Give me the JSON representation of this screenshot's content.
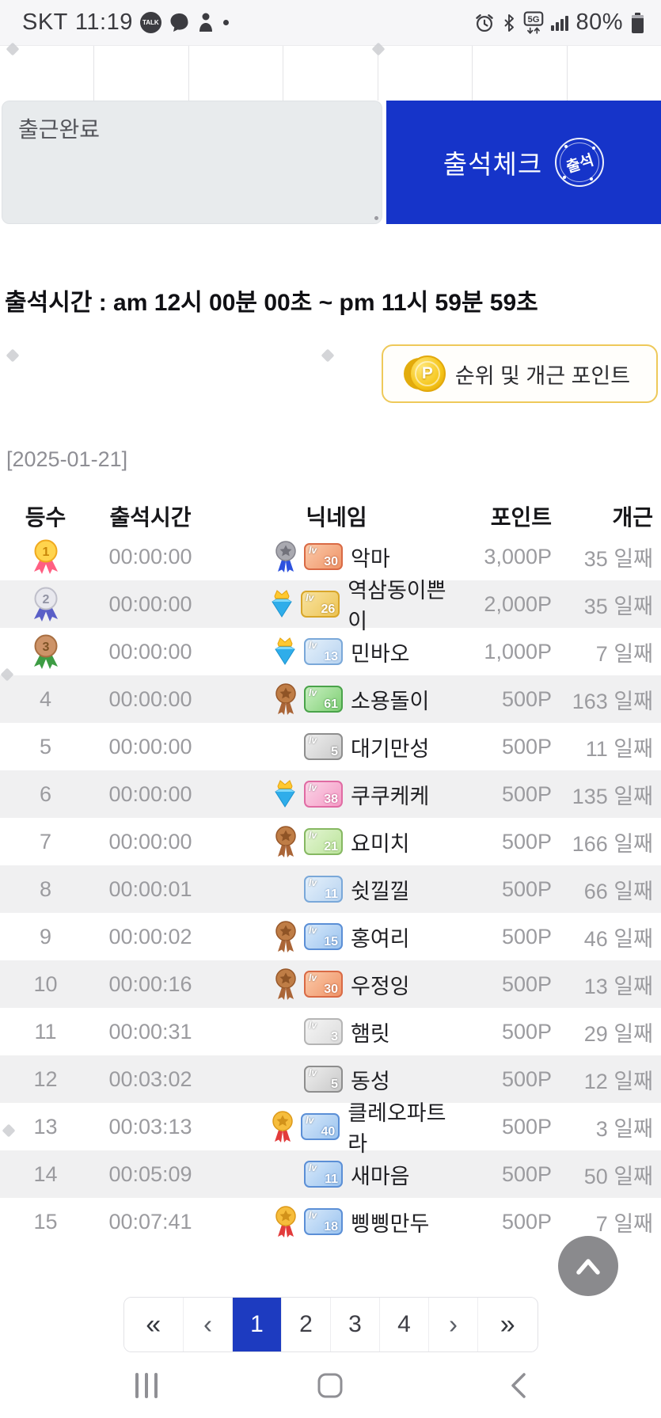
{
  "status_bar": {
    "carrier": "SKT",
    "time": "11:19",
    "talk_label": "TALK",
    "network": "5G",
    "battery_percent": "80%"
  },
  "attendance": {
    "memo_text": "출근완료",
    "check_button": "출석체크",
    "stamp": "출석",
    "time_range": "출석시간 : am 12시 00분 00초 ~ pm 11시 59분 59초"
  },
  "points_button": {
    "label": "순위 및 개근 포인트",
    "coin_letter": "P"
  },
  "leaderboard": {
    "date": "[2025-01-21]",
    "level_prefix": "lv",
    "columns": [
      "등수",
      "출석시간",
      "닉네임",
      "포인트",
      "개근"
    ],
    "rows": [
      {
        "rank": "1",
        "rank_icon": "gold",
        "time": "00:00:00",
        "medal": "silver",
        "level": "30",
        "level_style": "orange",
        "name": "악마",
        "points": "3,000P",
        "streak": "35 일째"
      },
      {
        "rank": "2",
        "rank_icon": "silver",
        "time": "00:00:00",
        "medal": "diamond",
        "level": "26",
        "level_style": "gold",
        "name": "역삼동이쁜이",
        "points": "2,000P",
        "streak": "35 일째"
      },
      {
        "rank": "3",
        "rank_icon": "bronze",
        "time": "00:00:00",
        "medal": "diamond",
        "level": "13",
        "level_style": "skyblue",
        "name": "민바오",
        "points": "1,000P",
        "streak": "7 일째"
      },
      {
        "rank": "4",
        "rank_icon": null,
        "time": "00:00:00",
        "medal": "bronze",
        "level": "61",
        "level_style": "green",
        "name": "소용돌이",
        "points": "500P",
        "streak": "163 일째"
      },
      {
        "rank": "5",
        "rank_icon": null,
        "time": "00:00:00",
        "medal": null,
        "level": "5",
        "level_style": "gray",
        "name": "대기만성",
        "points": "500P",
        "streak": "11 일째"
      },
      {
        "rank": "6",
        "rank_icon": null,
        "time": "00:00:00",
        "medal": "diamond",
        "level": "38",
        "level_style": "pink",
        "name": "쿠쿠케케",
        "points": "500P",
        "streak": "135 일째"
      },
      {
        "rank": "7",
        "rank_icon": null,
        "time": "00:00:00",
        "medal": "bronze",
        "level": "21",
        "level_style": "lightgreen",
        "name": "요미치",
        "points": "500P",
        "streak": "166 일째"
      },
      {
        "rank": "8",
        "rank_icon": null,
        "time": "00:00:01",
        "medal": null,
        "level": "11",
        "level_style": "skyblue",
        "name": "쉿낄낄",
        "points": "500P",
        "streak": "66 일째"
      },
      {
        "rank": "9",
        "rank_icon": null,
        "time": "00:00:02",
        "medal": "bronze",
        "level": "15",
        "level_style": "blue",
        "name": "홍여리",
        "points": "500P",
        "streak": "46 일째"
      },
      {
        "rank": "10",
        "rank_icon": null,
        "time": "00:00:16",
        "medal": "bronze",
        "level": "30",
        "level_style": "orange",
        "name": "우정잉",
        "points": "500P",
        "streak": "13 일째"
      },
      {
        "rank": "11",
        "rank_icon": null,
        "time": "00:00:31",
        "medal": null,
        "level": "3",
        "level_style": "lightgray",
        "name": "햄릿",
        "points": "500P",
        "streak": "29 일째"
      },
      {
        "rank": "12",
        "rank_icon": null,
        "time": "00:03:02",
        "medal": null,
        "level": "5",
        "level_style": "gray",
        "name": "동성",
        "points": "500P",
        "streak": "12 일째"
      },
      {
        "rank": "13",
        "rank_icon": null,
        "time": "00:03:13",
        "medal": "gold",
        "level": "40",
        "level_style": "blue",
        "name": "클레오파트라",
        "points": "500P",
        "streak": "3 일째"
      },
      {
        "rank": "14",
        "rank_icon": null,
        "time": "00:05:09",
        "medal": null,
        "level": "11",
        "level_style": "blue",
        "name": "새마음",
        "points": "500P",
        "streak": "50 일째"
      },
      {
        "rank": "15",
        "rank_icon": null,
        "time": "00:07:41",
        "medal": "gold",
        "level": "18",
        "level_style": "blue",
        "name": "삥삥만두",
        "points": "500P",
        "streak": "7 일째"
      }
    ]
  },
  "pagination": {
    "first": "«",
    "prev": "‹",
    "pages": [
      "1",
      "2",
      "3",
      "4"
    ],
    "active_page": "1",
    "next": "›",
    "last": "»"
  },
  "colors": {
    "primary_blue": "#1634c9",
    "pagination_active_blue": "#1d3bc0",
    "points_button_border": "#eec95a",
    "alt_row_gray": "#f0f0f1"
  }
}
